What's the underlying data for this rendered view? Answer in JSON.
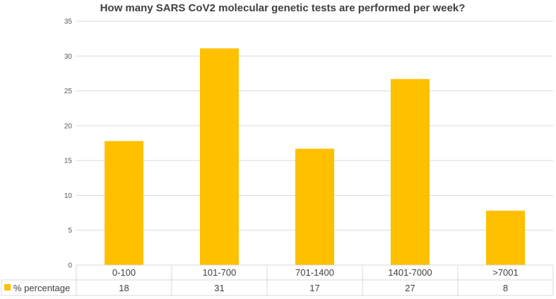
{
  "chart_data": {
    "type": "bar",
    "title": "How many SARS CoV2 molecular genetic tests are performed per week?",
    "categories": [
      "0-100",
      "101-700",
      "701-1400",
      "1401-7000",
      ">7001"
    ],
    "series": [
      {
        "name": "% percentage",
        "values": [
          17.8,
          31.1,
          16.7,
          26.7,
          7.8
        ],
        "table_values": [
          "18",
          "31",
          "17",
          "27",
          "8"
        ],
        "color": "#FFC000"
      }
    ],
    "ylim": [
      0,
      35
    ],
    "yticks": [
      "0",
      "5",
      "10",
      "15",
      "20",
      "25",
      "30",
      "35"
    ],
    "grid": true,
    "data_table": true,
    "xlabel": "",
    "ylabel": ""
  }
}
